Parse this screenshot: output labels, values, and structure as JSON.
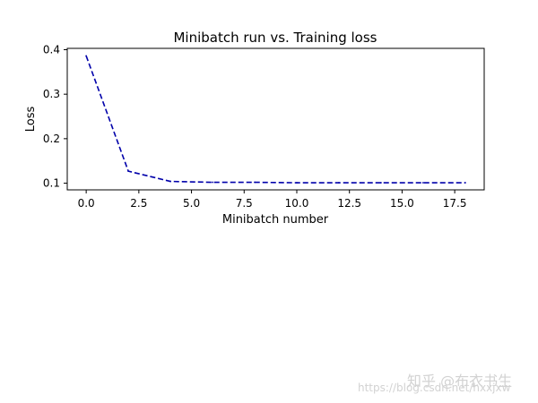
{
  "chart_data": {
    "type": "line",
    "title": "Minibatch run vs. Training loss",
    "xlabel": "Minibatch number",
    "ylabel": "Loss",
    "xlim": [
      -0.9,
      18.9
    ],
    "ylim": [
      0.085,
      0.403
    ],
    "xticks": [
      0.0,
      2.5,
      5.0,
      7.5,
      10.0,
      12.5,
      15.0,
      17.5
    ],
    "xtick_labels": [
      "0.0",
      "2.5",
      "5.0",
      "7.5",
      "10.0",
      "12.5",
      "15.0",
      "17.5"
    ],
    "yticks": [
      0.1,
      0.2,
      0.3,
      0.4
    ],
    "ytick_labels": [
      "0.1",
      "0.2",
      "0.3",
      "0.4"
    ],
    "grid": false,
    "series": [
      {
        "color": "#0000aa",
        "linestyle": "dashed",
        "x": [
          0,
          2,
          4,
          6,
          8,
          10,
          12,
          14,
          16,
          18
        ],
        "y": [
          0.386,
          0.127,
          0.104,
          0.102,
          0.102,
          0.101,
          0.101,
          0.101,
          0.101,
          0.101
        ]
      }
    ]
  },
  "watermark": {
    "brand": "知乎 @布衣书生",
    "url": "https://blog.csdn.net/hxxjxw"
  }
}
